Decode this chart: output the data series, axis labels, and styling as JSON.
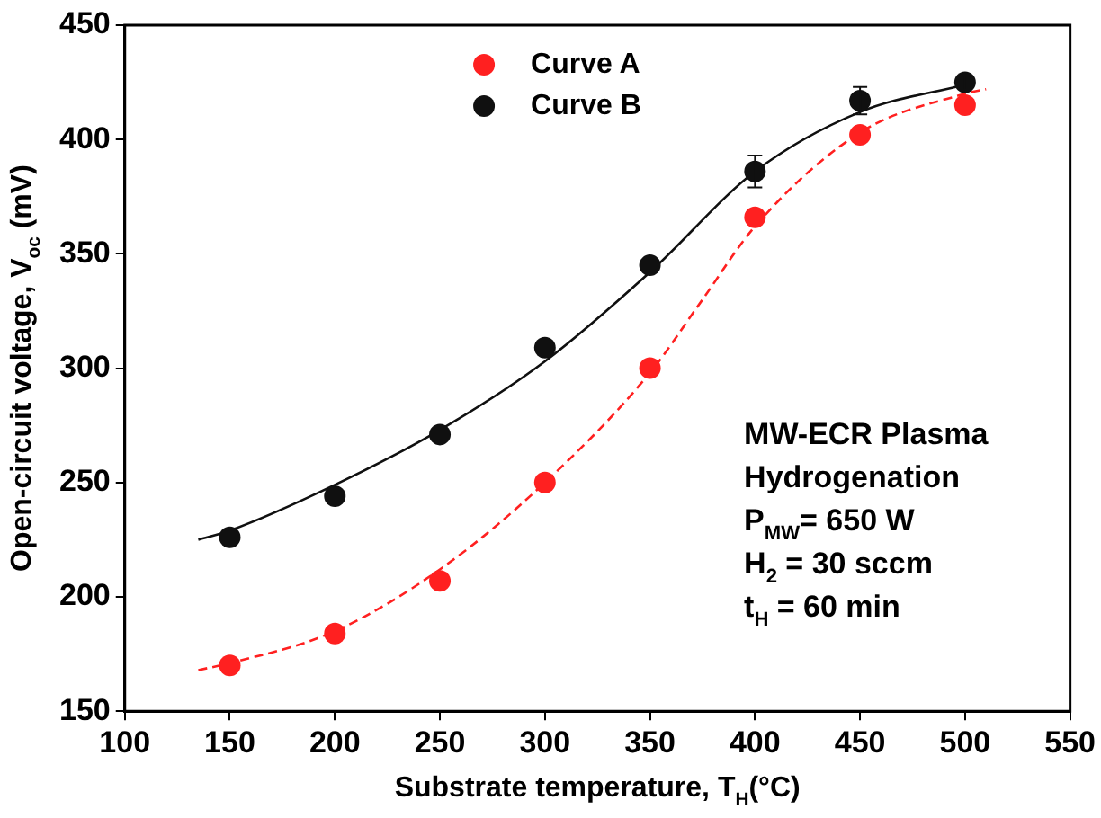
{
  "chart_data": {
    "type": "scatter",
    "xlabel": "Substrate temperature, T$_{H}$(°C)",
    "ylabel": "Open-circuit voltage, V$_{oc}$ (mV)",
    "xlim": [
      100,
      550
    ],
    "xticks": [
      100,
      150,
      200,
      250,
      300,
      350,
      400,
      450,
      500,
      550
    ],
    "ylim": [
      150,
      450
    ],
    "yticks": [
      150,
      200,
      250,
      300,
      350,
      400,
      450
    ],
    "grid": false,
    "legend": "top",
    "marker": "circle",
    "series": [
      {
        "name": "Curve A",
        "color": "#ff2020",
        "x": [
          150,
          200,
          250,
          300,
          350,
          400,
          450,
          500
        ],
        "values": [
          170,
          184,
          207,
          250,
          300,
          366,
          402,
          415
        ]
      },
      {
        "name": "Curve B",
        "color": "#101010",
        "x": [
          150,
          200,
          250,
          300,
          350,
          400,
          450,
          500
        ],
        "values": [
          226,
          244,
          271,
          309,
          345,
          386,
          417,
          425
        ],
        "errors": [
          null,
          null,
          null,
          null,
          null,
          7,
          6,
          3
        ]
      },
      {
        "type": "line",
        "color": "#ff2020",
        "line_style": "dashed",
        "marker": "none",
        "x": [
          135,
          150,
          200,
          250,
          300,
          350,
          375,
          400,
          450,
          500,
          510
        ],
        "values": [
          168,
          171,
          185,
          212,
          250,
          298,
          330,
          362,
          403,
          420,
          422
        ]
      },
      {
        "type": "line",
        "color": "#101010",
        "line_style": "solid",
        "marker": "none",
        "x": [
          135,
          150,
          200,
          250,
          300,
          350,
          400,
          450,
          500
        ],
        "values": [
          225,
          229,
          249,
          273,
          303,
          342,
          386,
          412,
          424
        ]
      }
    ],
    "annotations": [
      "MW-ECR Plasma",
      "Hydrogenation",
      "P$_{MW}$= 650 W",
      "H$_{2}$ = 30 sccm",
      "t$_{H}$ = 60 min"
    ]
  }
}
